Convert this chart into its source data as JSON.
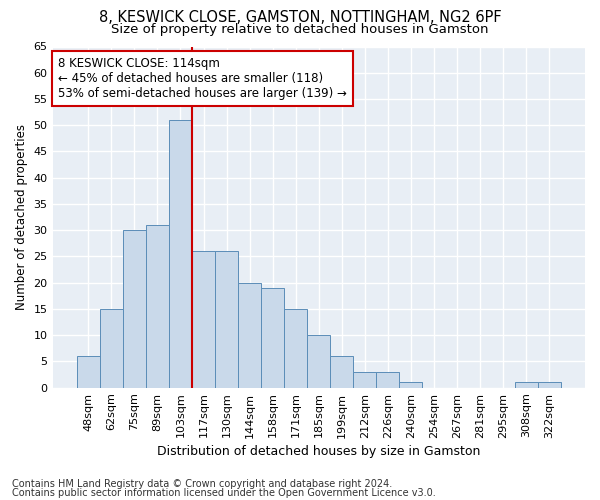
{
  "title1": "8, KESWICK CLOSE, GAMSTON, NOTTINGHAM, NG2 6PF",
  "title2": "Size of property relative to detached houses in Gamston",
  "xlabel": "Distribution of detached houses by size in Gamston",
  "ylabel": "Number of detached properties",
  "bar_labels": [
    "48sqm",
    "62sqm",
    "75sqm",
    "89sqm",
    "103sqm",
    "117sqm",
    "130sqm",
    "144sqm",
    "158sqm",
    "171sqm",
    "185sqm",
    "199sqm",
    "212sqm",
    "226sqm",
    "240sqm",
    "254sqm",
    "267sqm",
    "281sqm",
    "295sqm",
    "308sqm",
    "322sqm"
  ],
  "bar_values": [
    6,
    15,
    30,
    31,
    51,
    26,
    26,
    20,
    19,
    15,
    10,
    6,
    3,
    3,
    1,
    0,
    0,
    0,
    0,
    1,
    1
  ],
  "bar_color": "#c9d9ea",
  "bar_edge_color": "#5b8db8",
  "annotation_line1": "8 KESWICK CLOSE: 114sqm",
  "annotation_line2": "← 45% of detached houses are smaller (118)",
  "annotation_line3": "53% of semi-detached houses are larger (139) →",
  "annotation_box_color": "#ffffff",
  "annotation_box_edge": "#cc0000",
  "redline_color": "#cc0000",
  "redline_x": 5,
  "footer1": "Contains HM Land Registry data © Crown copyright and database right 2024.",
  "footer2": "Contains public sector information licensed under the Open Government Licence v3.0.",
  "ylim": [
    0,
    65
  ],
  "yticks": [
    0,
    5,
    10,
    15,
    20,
    25,
    30,
    35,
    40,
    45,
    50,
    55,
    60,
    65
  ],
  "fig_bg": "#ffffff",
  "ax_bg": "#e8eef5",
  "grid_color": "#ffffff",
  "title1_fontsize": 10.5,
  "title2_fontsize": 9.5,
  "tick_fontsize": 8,
  "ylabel_fontsize": 8.5,
  "xlabel_fontsize": 9,
  "footer_fontsize": 7,
  "annot_fontsize": 8.5
}
